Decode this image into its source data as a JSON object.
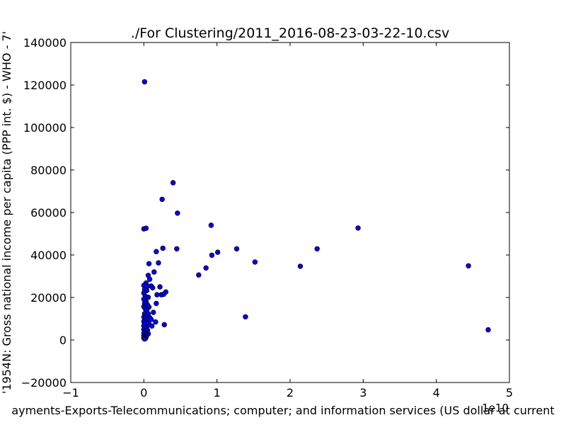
{
  "chart_data": {
    "type": "scatter",
    "title": "./For Clustering/2011_2016-08-23-03-22-10.csv",
    "xlabel": "ayments-Exports-Telecommunications; computer; and information services (US dollar at current",
    "ylabel": "'1954N: Gross national income per capita (PPP int. $) - WHO - 7'",
    "x_offset_label": "1e10",
    "xlim": [
      -1,
      5
    ],
    "ylim": [
      -20000,
      140000
    ],
    "xticks": [
      -1,
      0,
      1,
      2,
      3,
      4,
      5
    ],
    "xtick_labels": [
      "−1",
      "0",
      "1",
      "2",
      "3",
      "4",
      "5"
    ],
    "yticks": [
      -20000,
      0,
      20000,
      40000,
      60000,
      80000,
      100000,
      120000,
      140000
    ],
    "ytick_labels": [
      "−20000",
      "0",
      "20000",
      "40000",
      "60000",
      "80000",
      "100000",
      "120000",
      "140000"
    ],
    "grid": false,
    "marker_color": "#0000ff",
    "marker_edge_color": "#000000",
    "points": [
      {
        "x": 0.01,
        "y": 121500
      },
      {
        "x": 0.4,
        "y": 74000
      },
      {
        "x": 0.25,
        "y": 66200
      },
      {
        "x": 0.46,
        "y": 59700
      },
      {
        "x": 0.0,
        "y": 52300
      },
      {
        "x": 0.03,
        "y": 52600
      },
      {
        "x": 0.92,
        "y": 54000
      },
      {
        "x": 2.93,
        "y": 52700
      },
      {
        "x": 0.26,
        "y": 43200
      },
      {
        "x": 0.45,
        "y": 42900
      },
      {
        "x": 0.17,
        "y": 41600
      },
      {
        "x": 1.01,
        "y": 41300
      },
      {
        "x": 0.93,
        "y": 39900
      },
      {
        "x": 1.27,
        "y": 42900
      },
      {
        "x": 2.37,
        "y": 42900
      },
      {
        "x": 1.52,
        "y": 36700
      },
      {
        "x": 0.2,
        "y": 36300
      },
      {
        "x": 0.07,
        "y": 35900
      },
      {
        "x": 2.14,
        "y": 34700
      },
      {
        "x": 4.44,
        "y": 34900
      },
      {
        "x": 0.85,
        "y": 33900
      },
      {
        "x": 0.14,
        "y": 32000
      },
      {
        "x": 0.75,
        "y": 30600
      },
      {
        "x": 0.06,
        "y": 30400
      },
      {
        "x": 0.08,
        "y": 28600
      },
      {
        "x": 0.03,
        "y": 26800
      },
      {
        "x": 0.0,
        "y": 25700
      },
      {
        "x": 0.05,
        "y": 25300
      },
      {
        "x": 0.1,
        "y": 25400
      },
      {
        "x": 0.22,
        "y": 25000
      },
      {
        "x": 0.12,
        "y": 24600
      },
      {
        "x": 0.01,
        "y": 23800
      },
      {
        "x": 0.04,
        "y": 23300
      },
      {
        "x": 0.3,
        "y": 22600
      },
      {
        "x": 0.0,
        "y": 22100
      },
      {
        "x": 0.18,
        "y": 21300
      },
      {
        "x": 0.24,
        "y": 21300
      },
      {
        "x": 0.27,
        "y": 21500
      },
      {
        "x": 0.02,
        "y": 20600
      },
      {
        "x": 0.06,
        "y": 20100
      },
      {
        "x": 0.0,
        "y": 19200
      },
      {
        "x": 0.03,
        "y": 18100
      },
      {
        "x": 0.01,
        "y": 17300
      },
      {
        "x": 0.17,
        "y": 17200
      },
      {
        "x": 0.05,
        "y": 16500
      },
      {
        "x": 0.0,
        "y": 15700
      },
      {
        "x": 0.07,
        "y": 15500
      },
      {
        "x": 0.02,
        "y": 14600
      },
      {
        "x": 0.04,
        "y": 13900
      },
      {
        "x": 0.13,
        "y": 13000
      },
      {
        "x": 0.01,
        "y": 12400
      },
      {
        "x": 0.06,
        "y": 12300
      },
      {
        "x": 0.03,
        "y": 11600
      },
      {
        "x": 0.0,
        "y": 10800
      },
      {
        "x": 1.39,
        "y": 10900
      },
      {
        "x": 0.08,
        "y": 10500
      },
      {
        "x": 0.02,
        "y": 9900
      },
      {
        "x": 0.05,
        "y": 9400
      },
      {
        "x": 0.1,
        "y": 9700
      },
      {
        "x": 0.0,
        "y": 8800
      },
      {
        "x": 0.16,
        "y": 8500
      },
      {
        "x": 0.03,
        "y": 8000
      },
      {
        "x": 0.01,
        "y": 7600
      },
      {
        "x": 0.07,
        "y": 7500
      },
      {
        "x": 0.28,
        "y": 7200
      },
      {
        "x": 0.0,
        "y": 6700
      },
      {
        "x": 0.11,
        "y": 6600
      },
      {
        "x": 0.04,
        "y": 6300
      },
      {
        "x": 0.02,
        "y": 5700
      },
      {
        "x": 4.71,
        "y": 4800
      },
      {
        "x": 0.0,
        "y": 4900
      },
      {
        "x": 0.05,
        "y": 4600
      },
      {
        "x": 0.01,
        "y": 4100
      },
      {
        "x": 0.03,
        "y": 3600
      },
      {
        "x": 0.0,
        "y": 3100
      },
      {
        "x": 0.06,
        "y": 2900
      },
      {
        "x": 0.02,
        "y": 2500
      },
      {
        "x": 0.04,
        "y": 2300
      },
      {
        "x": 0.0,
        "y": 1900
      },
      {
        "x": 0.01,
        "y": 1600
      },
      {
        "x": 0.03,
        "y": 1300
      },
      {
        "x": 0.0,
        "y": 900
      },
      {
        "x": 0.02,
        "y": 700
      },
      {
        "x": 0.01,
        "y": 500
      }
    ]
  }
}
